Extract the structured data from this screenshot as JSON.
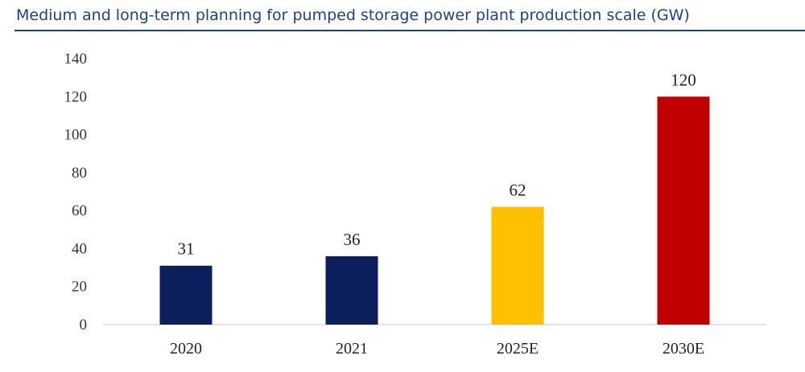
{
  "title": "Medium and long-term planning for pumped storage power plant production scale (GW)",
  "chart_data": {
    "type": "bar",
    "categories": [
      "2020",
      "2021",
      "2025E",
      "2030E"
    ],
    "values": [
      31,
      36,
      62,
      120
    ],
    "data_labels": [
      "31",
      "36",
      "62",
      "120"
    ],
    "bar_colors": [
      "#0a1f5c",
      "#0a1f5c",
      "#ffc000",
      "#c00000"
    ],
    "ylim": [
      0,
      140
    ],
    "yticks": [
      0,
      20,
      40,
      60,
      80,
      100,
      120,
      140
    ],
    "grid": false,
    "legend": "none",
    "xlabel": "",
    "ylabel": ""
  },
  "colors": {
    "title": "#1d3f8f",
    "axis_line": "#d9d9d9"
  }
}
